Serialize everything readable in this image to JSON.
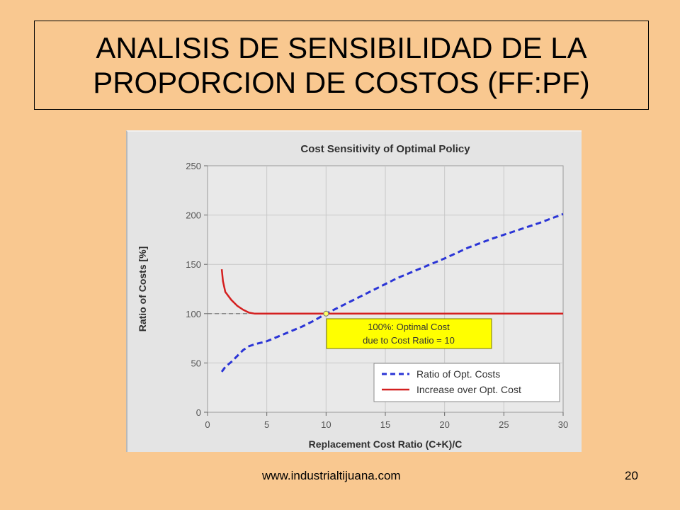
{
  "slide": {
    "title_line1": "ANALISIS DE SENSIBILIDAD DE LA",
    "title_line2": "PROPORCION DE COSTOS (FF:PF)",
    "footer_url": "www.industrialtijuana.com",
    "page_number": "20"
  },
  "chart_data": {
    "type": "line",
    "title": "Cost Sensitivity of Optimal Policy",
    "xlabel": "Replacement Cost Ratio (C+K)/C",
    "ylabel": "Ratio of Costs [%]",
    "xlim": [
      0,
      30
    ],
    "ylim": [
      0,
      250
    ],
    "xticks": [
      0,
      5,
      10,
      15,
      20,
      25,
      30
    ],
    "yticks": [
      0,
      50,
      100,
      150,
      200,
      250
    ],
    "grid": true,
    "legend_position": "bottom-right",
    "series": [
      {
        "name": "Ratio of Opt. Costs",
        "color": "#2B35D6",
        "style": "dashed",
        "x": [
          1.2,
          1.5,
          2,
          2.5,
          3,
          3.5,
          4,
          5,
          6,
          7,
          8,
          9,
          10,
          12,
          14,
          16,
          18,
          20,
          22,
          24,
          26,
          28,
          30
        ],
        "y": [
          41,
          46,
          51,
          57,
          63,
          67,
          69,
          72,
          77,
          82,
          87,
          93,
          100,
          112,
          124,
          136,
          146,
          156,
          167,
          176,
          184,
          192,
          201
        ]
      },
      {
        "name": "Increase over Opt. Cost",
        "color": "#D42020",
        "style": "solid",
        "x": [
          1.2,
          1.3,
          1.5,
          2,
          2.5,
          3,
          3.5,
          4,
          5,
          10,
          15,
          20,
          25,
          30
        ],
        "y": [
          145,
          133,
          122,
          114,
          108,
          104,
          101,
          100,
          100,
          100,
          100,
          100,
          100,
          100
        ]
      }
    ],
    "reference_line": {
      "y": 100,
      "x_start": 0,
      "x_end": 3.5,
      "style": "dashed",
      "color": "#707070"
    },
    "annotation": {
      "line1": "100%: Optimal Cost",
      "line2": "due to Cost Ratio = 10",
      "point": [
        10,
        100
      ],
      "background": "#FFFF00"
    }
  }
}
